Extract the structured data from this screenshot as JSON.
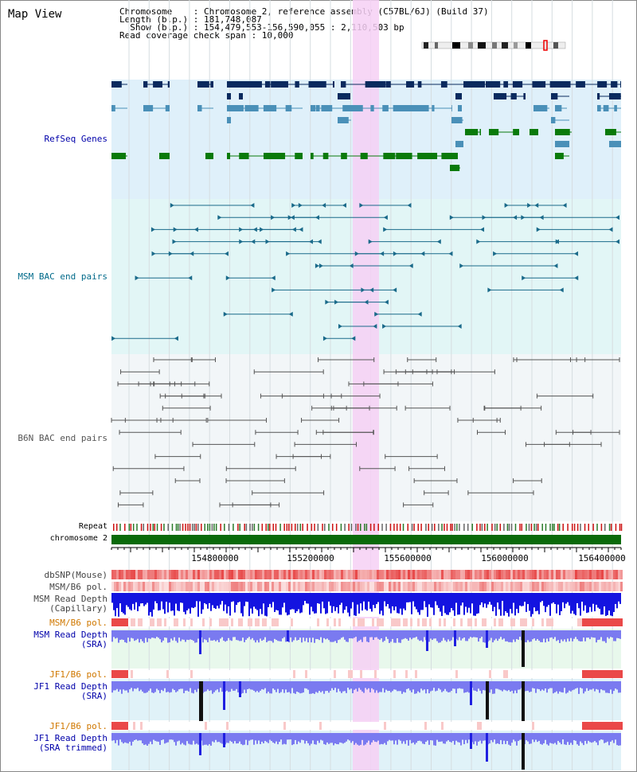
{
  "title": "Map View",
  "info": {
    "chromosome_line": "Chromosome    : Chromosome 2, reference assembly (C57BL/6J) (Build 37)",
    "length_line": "Length (b.p.) : 181,748,087",
    "show_line": "  Show (b.p.) : 154,479,553-156,590,055 : 2,110,503 bp",
    "coverage_line": "Read coverage check span : 10,000"
  },
  "tracks": {
    "refseq": "RefSeq Genes",
    "msm_bac": "MSM BAC end pairs",
    "b6n_bac": "B6N BAC end pairs",
    "repeat": "Repeat",
    "chromosome": "chromosome 2",
    "dbsnp": "dbSNP(Mouse)",
    "msm_b6_pol_1": "MSM/B6 pol.",
    "msm_read_depth_cap": "MSM Read Depth",
    "msm_read_depth_cap_sub": "(Capillary)",
    "msm_b6_pol_2": "MSM/B6 pol.",
    "msm_read_depth_sra": "MSM Read Depth",
    "msm_read_depth_sra_sub": "(SRA)",
    "jf1_b6_pol_1": "JF1/B6 pol.",
    "jf1_read_depth": "JF1 Read Depth",
    "jf1_read_depth_sub": "(SRA)",
    "jf1_b6_pol_2": "JF1/B6 pol.",
    "jf1_read_depth_trim": "JF1 Read Depth",
    "jf1_read_depth_trim_sub": "(SRA trimmed)"
  },
  "axis": {
    "ticks": [
      "154800000",
      "155200000",
      "155600000",
      "156000000",
      "156400000"
    ]
  },
  "colors": {
    "refseq_dark": "#0a2a5e",
    "refseq_mid": "#4a90b8",
    "refseq_green": "#0a7a0a",
    "msm_bac": "#1a6a8a",
    "b6n_bac": "#555555",
    "highlight": "#f8d8f8",
    "depth_blue": "#1010e0",
    "depth_light": "#8080f0",
    "track_label_blue": "#0000aa",
    "track_label_orange": "#d07800",
    "track_label_teal": "#006a8a"
  }
}
